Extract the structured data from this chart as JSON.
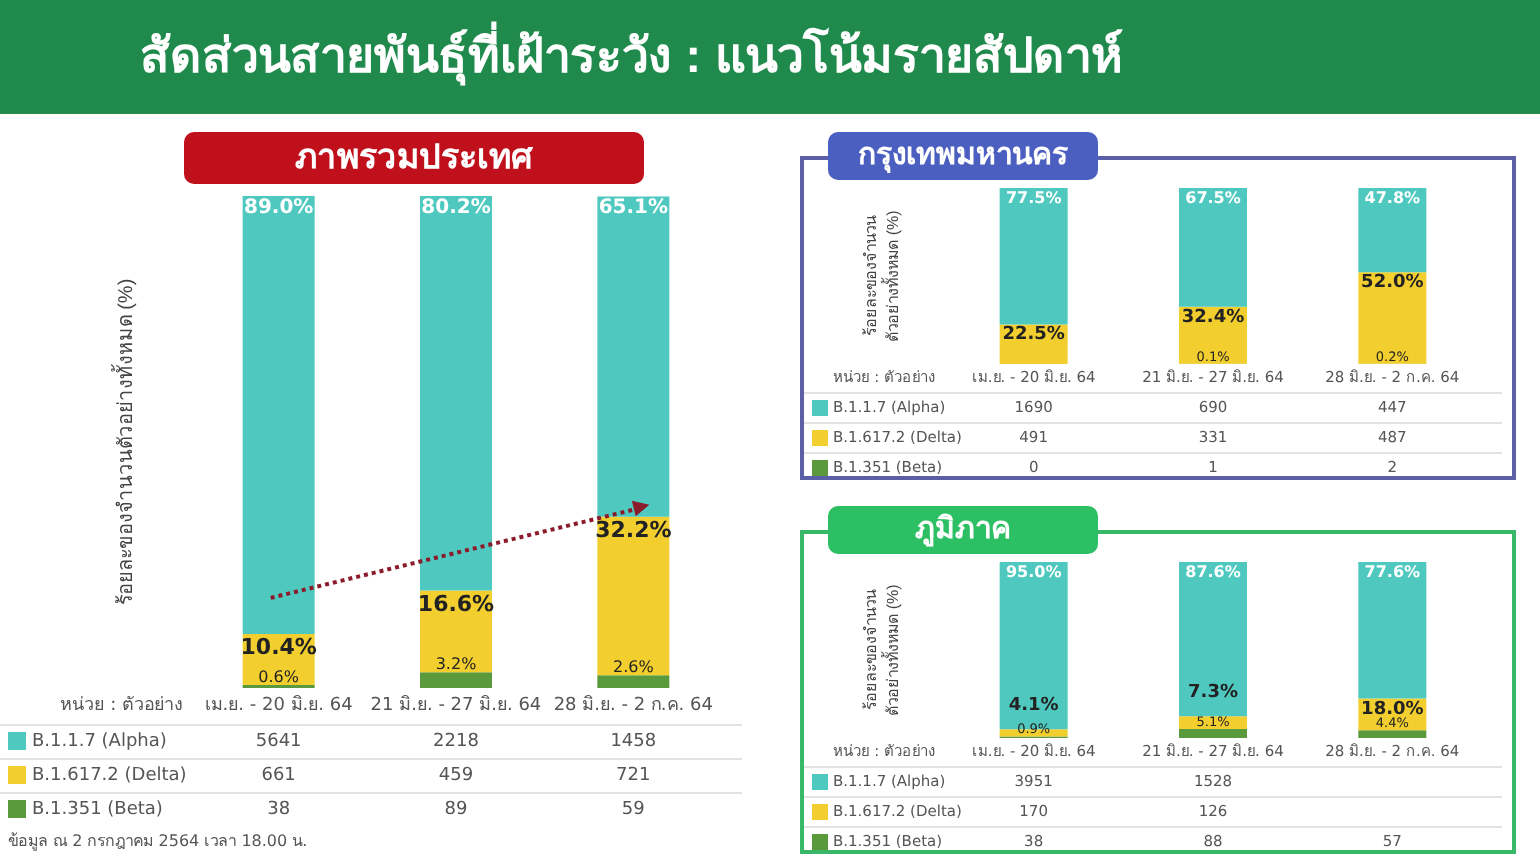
{
  "chart_data": [
    {
      "type": "bar",
      "stacked": true,
      "title": "สัดส่วนสายพันธุ์ที่เฝ้าระวัง : แนวโน้มรายสัปดาห์",
      "subtitle": "ภาพรวมประเทศ",
      "ylabel": "ร้อยละของจำนวนตัวอย่างทั้งหมด (%)",
      "categories": [
        "เม.ย. - 20 มิ.ย. 64",
        "21 มิ.ย. - 27 มิ.ย. 64",
        "28 มิ.ย. - 2 ก.ค. 64"
      ],
      "ylim": [
        0,
        100
      ],
      "legend": "bottom",
      "series": [
        {
          "name": "B.1.351 (Beta)",
          "color": "#5a9a3c",
          "values": [
            0.6,
            3.2,
            2.6
          ],
          "value_labels": [
            "0.6%",
            "3.2%",
            "2.6%"
          ]
        },
        {
          "name": "B.1.617.2 (Delta)",
          "color": "#f2cf2e",
          "values": [
            10.4,
            16.6,
            32.2
          ],
          "value_labels": [
            "10.4%",
            "16.6%",
            "32.2%"
          ]
        },
        {
          "name": "B.1.1.7 (Alpha)",
          "color": "#4fc9bf",
          "values": [
            89.0,
            80.2,
            65.1
          ],
          "value_labels": [
            "89.0%",
            "80.2%",
            "65.1%"
          ]
        }
      ],
      "annotations": [
        "หน่วย : ตัวอย่าง",
        "5641",
        "2218",
        "1458",
        "661",
        "459",
        "721",
        "38",
        "89",
        "59",
        "ข้อมูล ณ 2 กรกฎาคม 2564 เวลา 18.00 น."
      ]
    },
    {
      "type": "bar",
      "stacked": true,
      "title": "กรุงเทพมหานคร",
      "ylabel": "ร้อยละของจำนวน\nตัวอย่างทั้งหมด (%)",
      "categories": [
        "เม.ย. - 20 มิ.ย. 64",
        "21 มิ.ย. - 27 มิ.ย. 64",
        "28 มิ.ย. - 2 ก.ค. 64"
      ],
      "ylim": [
        0,
        100
      ],
      "legend": "bottom",
      "series": [
        {
          "name": "B.1.351 (Beta)",
          "color": "#5a9a3c",
          "values": [
            0.0,
            0.1,
            0.2
          ],
          "value_labels": [
            null,
            "0.1%",
            "0.2%"
          ]
        },
        {
          "name": "B.1.617.2 (Delta)",
          "color": "#f2cf2e",
          "values": [
            22.5,
            32.4,
            52.0
          ],
          "value_labels": [
            "22.5%",
            "32.4%",
            "52.0%"
          ]
        },
        {
          "name": "B.1.1.7 (Alpha)",
          "color": "#4fc9bf",
          "values": [
            77.5,
            67.5,
            47.8
          ],
          "value_labels": [
            "77.5%",
            "67.5%",
            "47.8%"
          ]
        }
      ],
      "annotations": [
        "หน่วย : ตัวอย่าง",
        "1690",
        "690",
        "447",
        "491",
        "331",
        "487",
        "0",
        "1",
        "2"
      ]
    },
    {
      "type": "bar",
      "stacked": true,
      "title": "ภูมิภาค",
      "ylabel": "ร้อยละของจำนวน\nตัวอย่างทั้งหมด (%)",
      "categories": [
        "เม.ย. - 20 มิ.ย. 64",
        "21 มิ.ย. - 27 มิ.ย. 64",
        "28 มิ.ย. - 2 ก.ค. 64"
      ],
      "ylim": [
        0,
        100
      ],
      "legend": "bottom",
      "series": [
        {
          "name": "B.1.351 (Beta)",
          "color": "#5a9a3c",
          "values": [
            0.9,
            5.1,
            4.4
          ],
          "value_labels": [
            "0.9%",
            "5.1%",
            "4.4%"
          ]
        },
        {
          "name": "B.1.617.2 (Delta)",
          "color": "#f2cf2e",
          "values": [
            4.1,
            7.3,
            18.0
          ],
          "value_labels": [
            "4.1%",
            "7.3%",
            "18.0%"
          ]
        },
        {
          "name": "B.1.1.7 (Alpha)",
          "color": "#4fc9bf",
          "values": [
            95.0,
            87.6,
            77.6
          ],
          "value_labels": [
            "95.0%",
            "87.6%",
            "77.6%"
          ]
        }
      ],
      "annotations": [
        "หน่วย : ตัวอย่าง",
        "3951",
        "1528",
        null,
        "170",
        "126",
        null,
        "38",
        "88",
        "57"
      ]
    }
  ]
}
